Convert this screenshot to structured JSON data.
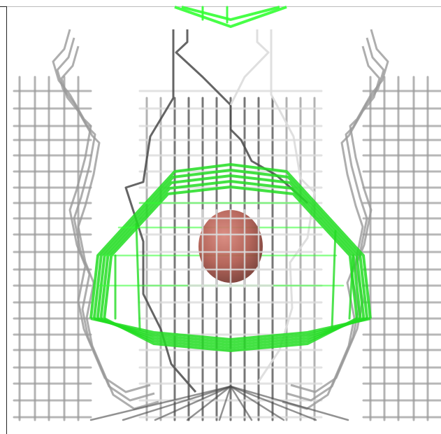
{
  "scene": {
    "background_color": "#ffffff",
    "colors": {
      "outer_mesh": "#9a9a9a",
      "outer_mesh_dark": "#4a4a4a",
      "outer_mesh_light": "#dcdcdc",
      "inner_mesh": "#22dd22",
      "inner_mesh_bright": "#33ff33",
      "sphere": "#b05a4e",
      "sphere_highlight": "#d8857a"
    },
    "objects": [
      {
        "name": "gray-wireframe-surface",
        "color_key": "outer_mesh"
      },
      {
        "name": "green-wireframe-surface",
        "color_key": "inner_mesh"
      },
      {
        "name": "red-sphere",
        "color_key": "sphere"
      }
    ]
  }
}
